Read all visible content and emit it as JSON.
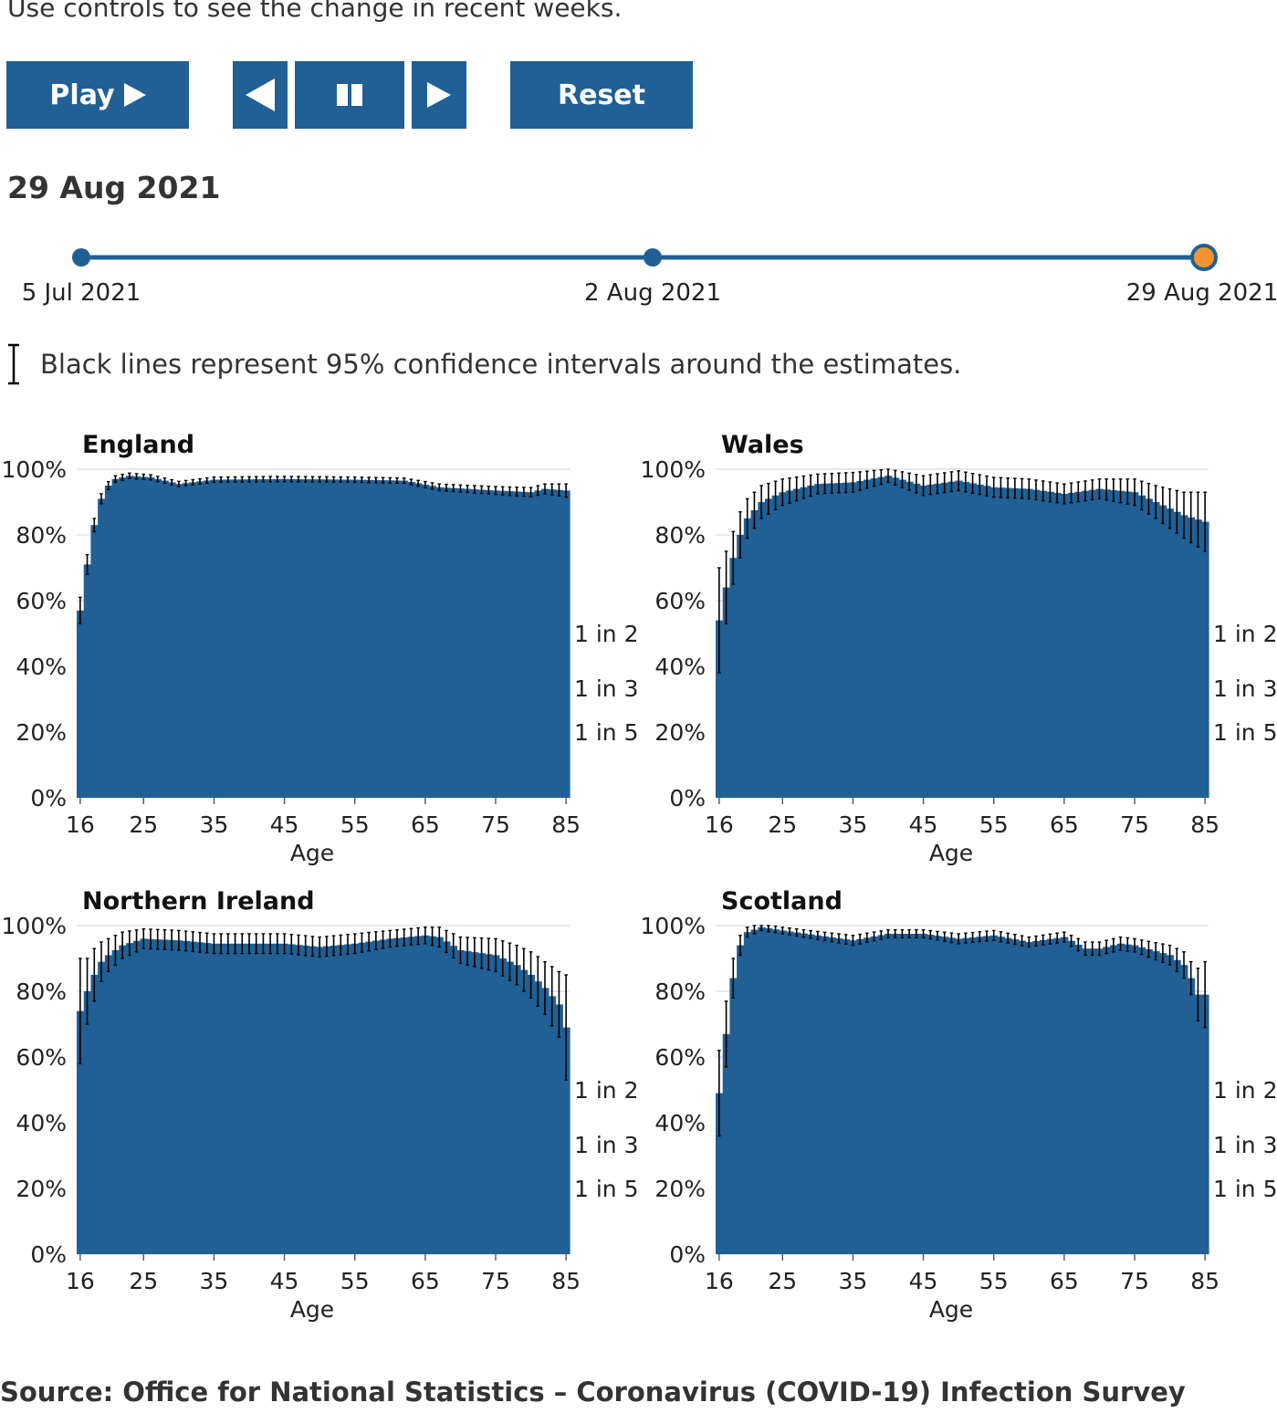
{
  "intro_text": "Use controls to see the change in recent weeks.",
  "controls": {
    "play_label": "Play",
    "reset_label": "Reset",
    "icons": [
      "play-icon",
      "step-back-icon",
      "pause-icon",
      "step-forward-icon"
    ]
  },
  "selected_date": "29 Aug 2021",
  "timeline": {
    "labels": [
      "5 Jul 2021",
      "2 Aug 2021",
      "29 Aug 2021"
    ],
    "selected_index": 2
  },
  "colors": {
    "bar": "#206095",
    "accent": "#206095",
    "selected_marker": "#F39431",
    "error_bar": "#000000"
  },
  "ci_note": "Black lines represent 95% confidence intervals around the estimates.",
  "source": "Source: Office for National Statistics – Coronavirus (COVID-19) Infection Survey",
  "chart_data": [
    {
      "type": "area",
      "title": "England",
      "xlabel": "Age",
      "ylabel": "",
      "x_ticks": [
        16,
        25,
        35,
        45,
        55,
        65,
        75,
        85
      ],
      "y_ticks": [
        "0%",
        "20%",
        "40%",
        "60%",
        "80%",
        "100%"
      ],
      "ylim": [
        0,
        100
      ],
      "xlim": [
        16,
        85
      ],
      "reference_labels": [
        {
          "label": "1 in 2",
          "value": 50
        },
        {
          "label": "1 in 3",
          "value": 33.3
        },
        {
          "label": "1 in 5",
          "value": 20
        }
      ],
      "knots": [
        [
          16,
          57,
          4
        ],
        [
          17,
          71,
          3
        ],
        [
          18,
          83,
          2
        ],
        [
          19,
          91,
          1.5
        ],
        [
          20,
          95,
          1.2
        ],
        [
          21,
          97,
          1
        ],
        [
          23,
          98,
          0.8
        ],
        [
          26,
          97.5,
          0.8
        ],
        [
          30,
          95.5,
          0.8
        ],
        [
          35,
          96.8,
          0.8
        ],
        [
          45,
          97,
          0.8
        ],
        [
          55,
          96.8,
          0.8
        ],
        [
          62,
          96.5,
          0.8
        ],
        [
          67,
          94.5,
          1
        ],
        [
          75,
          93.5,
          1.2
        ],
        [
          80,
          93,
          1.4
        ],
        [
          82,
          94,
          1.5
        ],
        [
          85,
          93.5,
          2
        ]
      ]
    },
    {
      "type": "area",
      "title": "Wales",
      "xlabel": "Age",
      "ylabel": "",
      "x_ticks": [
        16,
        25,
        35,
        45,
        55,
        65,
        75,
        85
      ],
      "y_ticks": [
        "0%",
        "20%",
        "40%",
        "60%",
        "80%",
        "100%"
      ],
      "ylim": [
        0,
        100
      ],
      "xlim": [
        16,
        85
      ],
      "reference_labels": [
        {
          "label": "1 in 2",
          "value": 50
        },
        {
          "label": "1 in 3",
          "value": 33.3
        },
        {
          "label": "1 in 5",
          "value": 20
        }
      ],
      "knots": [
        [
          16,
          54,
          16
        ],
        [
          17,
          64,
          11
        ],
        [
          18,
          73,
          8
        ],
        [
          19,
          80,
          7
        ],
        [
          20,
          85,
          6
        ],
        [
          22,
          90,
          5
        ],
        [
          25,
          93,
          4
        ],
        [
          30,
          95.5,
          3
        ],
        [
          35,
          96,
          3
        ],
        [
          40,
          98,
          2
        ],
        [
          45,
          95,
          3
        ],
        [
          50,
          96.5,
          3
        ],
        [
          55,
          94.5,
          3
        ],
        [
          60,
          94,
          3
        ],
        [
          65,
          92.5,
          3
        ],
        [
          70,
          94,
          3
        ],
        [
          75,
          93,
          4
        ],
        [
          78,
          90,
          5
        ],
        [
          80,
          88,
          6
        ],
        [
          82,
          86,
          7
        ],
        [
          85,
          84,
          9
        ]
      ]
    },
    {
      "type": "area",
      "title": "Northern Ireland",
      "xlabel": "Age",
      "ylabel": "",
      "x_ticks": [
        16,
        25,
        35,
        45,
        55,
        65,
        75,
        85
      ],
      "y_ticks": [
        "0%",
        "20%",
        "40%",
        "60%",
        "80%",
        "100%"
      ],
      "ylim": [
        0,
        100
      ],
      "xlim": [
        16,
        85
      ],
      "reference_labels": [
        {
          "label": "1 in 2",
          "value": 50
        },
        {
          "label": "1 in 3",
          "value": 33.3
        },
        {
          "label": "1 in 5",
          "value": 20
        }
      ],
      "knots": [
        [
          16,
          74,
          16
        ],
        [
          17,
          80,
          10
        ],
        [
          18,
          85,
          8
        ],
        [
          19,
          89,
          6
        ],
        [
          20,
          91,
          5
        ],
        [
          22,
          94,
          4
        ],
        [
          25,
          96,
          3
        ],
        [
          30,
          95.5,
          3
        ],
        [
          35,
          94.5,
          3
        ],
        [
          45,
          94.5,
          3
        ],
        [
          50,
          93.5,
          3
        ],
        [
          55,
          94.5,
          3
        ],
        [
          60,
          96,
          2.5
        ],
        [
          65,
          97,
          2.5
        ],
        [
          67,
          96.5,
          3
        ],
        [
          70,
          92.5,
          4
        ],
        [
          75,
          91,
          5
        ],
        [
          78,
          88,
          6
        ],
        [
          80,
          85,
          7
        ],
        [
          82,
          81,
          8
        ],
        [
          84,
          76,
          10
        ],
        [
          85,
          69,
          16
        ]
      ]
    },
    {
      "type": "area",
      "title": "Scotland",
      "xlabel": "Age",
      "ylabel": "",
      "x_ticks": [
        16,
        25,
        35,
        45,
        55,
        65,
        75,
        85
      ],
      "y_ticks": [
        "0%",
        "20%",
        "40%",
        "60%",
        "80%",
        "100%"
      ],
      "ylim": [
        0,
        100
      ],
      "xlim": [
        16,
        85
      ],
      "reference_labels": [
        {
          "label": "1 in 2",
          "value": 50
        },
        {
          "label": "1 in 3",
          "value": 33.3
        },
        {
          "label": "1 in 5",
          "value": 20
        }
      ],
      "knots": [
        [
          16,
          49,
          13
        ],
        [
          17,
          67,
          10
        ],
        [
          18,
          84,
          6
        ],
        [
          19,
          94,
          3
        ],
        [
          20,
          98,
          1.5
        ],
        [
          22,
          99.5,
          1
        ],
        [
          25,
          98.5,
          1
        ],
        [
          30,
          97,
          1.2
        ],
        [
          35,
          95.5,
          1.5
        ],
        [
          40,
          97.5,
          1.2
        ],
        [
          45,
          97.5,
          1.2
        ],
        [
          50,
          96,
          1.5
        ],
        [
          55,
          97,
          1.5
        ],
        [
          60,
          95,
          1.5
        ],
        [
          65,
          96.5,
          1.5
        ],
        [
          68,
          93,
          2
        ],
        [
          70,
          93,
          2
        ],
        [
          73,
          94.5,
          2
        ],
        [
          75,
          94,
          2
        ],
        [
          80,
          91,
          3
        ],
        [
          82,
          88,
          4
        ],
        [
          83,
          84,
          5
        ],
        [
          84,
          79,
          8
        ],
        [
          85,
          79,
          10
        ]
      ]
    }
  ]
}
